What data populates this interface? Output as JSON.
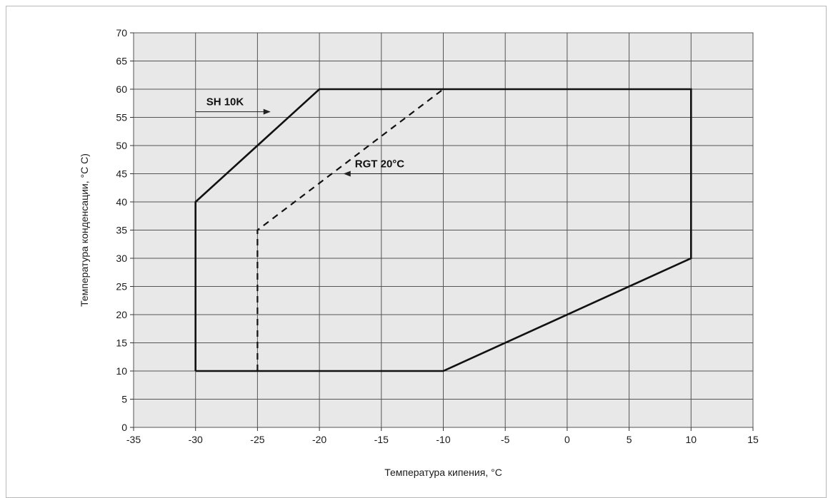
{
  "chart_data": {
    "type": "line",
    "title": "",
    "xlabel": "Температура кипения, °С",
    "ylabel": "Температура конденсации, °С С)",
    "xlim": [
      -35,
      15
    ],
    "ylim": [
      0,
      70
    ],
    "x_ticks": [
      -35,
      -30,
      -25,
      -20,
      -15,
      -10,
      -5,
      0,
      5,
      10,
      15
    ],
    "y_ticks": [
      0,
      5,
      10,
      15,
      20,
      25,
      30,
      35,
      40,
      45,
      50,
      55,
      60,
      65,
      70
    ],
    "grid": true,
    "background_color": "#e8e8e8",
    "series": [
      {
        "name": "SH 10K",
        "style": "solid",
        "points": [
          [
            -30,
            10
          ],
          [
            -30,
            40
          ],
          [
            -20,
            60
          ],
          [
            10,
            60
          ],
          [
            10,
            30
          ],
          [
            -10,
            10
          ],
          [
            -30,
            10
          ]
        ]
      },
      {
        "name": "RGT 20°C",
        "style": "dashed",
        "points": [
          [
            -25,
            10
          ],
          [
            -25,
            35
          ],
          [
            -10,
            60
          ]
        ]
      }
    ],
    "annotations": [
      {
        "text": "SH 10K",
        "arrow_from": [
          -30,
          56
        ],
        "arrow_to": [
          -24,
          56
        ]
      },
      {
        "text": "RGT 20°C",
        "arrow_from": [
          -10,
          45
        ],
        "arrow_to": [
          -18,
          45
        ]
      }
    ]
  }
}
